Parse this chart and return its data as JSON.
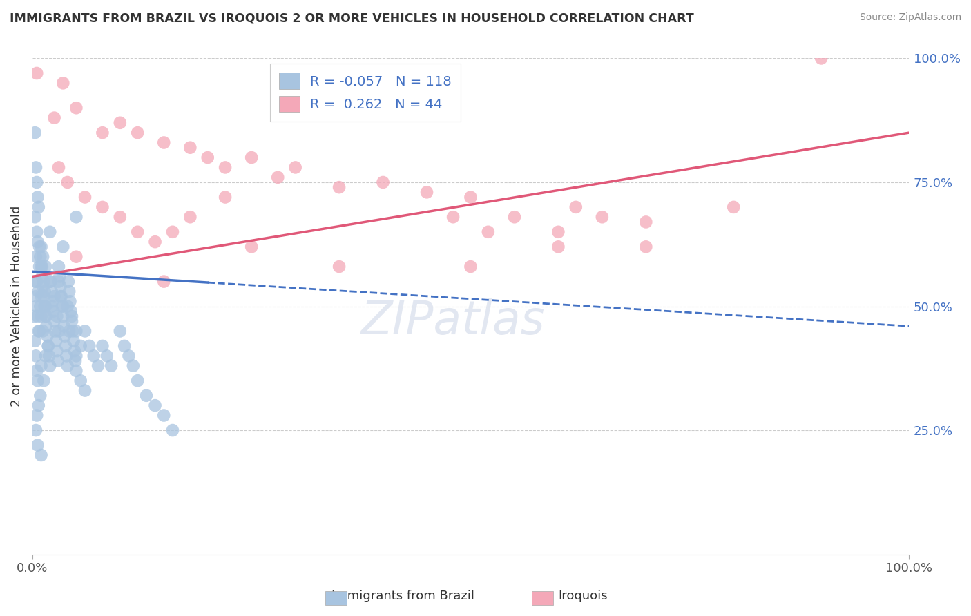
{
  "title": "IMMIGRANTS FROM BRAZIL VS IROQUOIS 2 OR MORE VEHICLES IN HOUSEHOLD CORRELATION CHART",
  "source": "Source: ZipAtlas.com",
  "ylabel": "2 or more Vehicles in Household",
  "xlim": [
    0,
    100
  ],
  "ylim": [
    0,
    100
  ],
  "blue_R": -0.057,
  "blue_N": 118,
  "pink_R": 0.262,
  "pink_N": 44,
  "blue_color": "#a8c4e0",
  "pink_color": "#f4a8b8",
  "blue_line_color": "#4472c4",
  "pink_line_color": "#e05878",
  "legend_label_blue": "Immigrants from Brazil",
  "legend_label_pink": "Iroquois",
  "watermark": "ZIPatlas",
  "blue_line": [
    [
      0,
      57
    ],
    [
      100,
      46
    ]
  ],
  "pink_line": [
    [
      0,
      56
    ],
    [
      100,
      85
    ]
  ],
  "blue_solid_end": 20,
  "blue_scatter": [
    [
      0.3,
      85
    ],
    [
      0.4,
      78
    ],
    [
      0.5,
      75
    ],
    [
      0.6,
      72
    ],
    [
      0.7,
      70
    ],
    [
      0.3,
      68
    ],
    [
      0.5,
      65
    ],
    [
      0.6,
      63
    ],
    [
      0.4,
      60
    ],
    [
      0.8,
      58
    ],
    [
      0.5,
      55
    ],
    [
      0.7,
      53
    ],
    [
      0.9,
      50
    ],
    [
      1.0,
      48
    ],
    [
      0.8,
      45
    ],
    [
      1.0,
      62
    ],
    [
      1.2,
      60
    ],
    [
      1.1,
      58
    ],
    [
      1.3,
      55
    ],
    [
      1.4,
      53
    ],
    [
      1.5,
      50
    ],
    [
      1.6,
      48
    ],
    [
      1.2,
      45
    ],
    [
      1.8,
      42
    ],
    [
      1.5,
      40
    ],
    [
      1.0,
      38
    ],
    [
      1.3,
      35
    ],
    [
      0.9,
      32
    ],
    [
      0.7,
      30
    ],
    [
      0.5,
      28
    ],
    [
      0.4,
      25
    ],
    [
      0.6,
      22
    ],
    [
      1.0,
      20
    ],
    [
      2.0,
      55
    ],
    [
      2.5,
      52
    ],
    [
      2.2,
      50
    ],
    [
      2.8,
      48
    ],
    [
      3.0,
      55
    ],
    [
      3.2,
      52
    ],
    [
      3.5,
      50
    ],
    [
      3.0,
      45
    ],
    [
      4.0,
      50
    ],
    [
      4.5,
      48
    ],
    [
      4.2,
      45
    ],
    [
      5.0,
      45
    ],
    [
      5.5,
      42
    ],
    [
      5.0,
      40
    ],
    [
      6.0,
      45
    ],
    [
      6.5,
      42
    ],
    [
      7.0,
      40
    ],
    [
      7.5,
      38
    ],
    [
      8.0,
      42
    ],
    [
      8.5,
      40
    ],
    [
      9.0,
      38
    ],
    [
      10.0,
      45
    ],
    [
      10.5,
      42
    ],
    [
      11.0,
      40
    ],
    [
      11.5,
      38
    ],
    [
      12.0,
      35
    ],
    [
      13.0,
      32
    ],
    [
      14.0,
      30
    ],
    [
      15.0,
      28
    ],
    [
      16.0,
      25
    ],
    [
      0.3,
      55
    ],
    [
      0.4,
      52
    ],
    [
      0.5,
      50
    ],
    [
      0.6,
      48
    ],
    [
      0.7,
      45
    ],
    [
      0.8,
      62
    ],
    [
      0.9,
      60
    ],
    [
      1.0,
      58
    ],
    [
      1.1,
      56
    ],
    [
      1.2,
      54
    ],
    [
      1.3,
      52
    ],
    [
      1.4,
      50
    ],
    [
      1.5,
      48
    ],
    [
      1.6,
      46
    ],
    [
      1.7,
      44
    ],
    [
      1.8,
      42
    ],
    [
      1.9,
      40
    ],
    [
      2.0,
      38
    ],
    [
      2.1,
      55
    ],
    [
      2.2,
      53
    ],
    [
      2.3,
      51
    ],
    [
      2.4,
      49
    ],
    [
      2.5,
      47
    ],
    [
      2.6,
      45
    ],
    [
      2.7,
      43
    ],
    [
      2.8,
      41
    ],
    [
      2.9,
      39
    ],
    [
      3.0,
      58
    ],
    [
      3.1,
      56
    ],
    [
      3.2,
      54
    ],
    [
      3.3,
      52
    ],
    [
      3.4,
      50
    ],
    [
      3.5,
      48
    ],
    [
      3.6,
      46
    ],
    [
      3.7,
      44
    ],
    [
      3.8,
      42
    ],
    [
      3.9,
      40
    ],
    [
      4.0,
      38
    ],
    [
      4.1,
      55
    ],
    [
      4.2,
      53
    ],
    [
      4.3,
      51
    ],
    [
      4.4,
      49
    ],
    [
      4.5,
      47
    ],
    [
      4.6,
      45
    ],
    [
      4.7,
      43
    ],
    [
      4.8,
      41
    ],
    [
      4.9,
      39
    ],
    [
      5.0,
      37
    ],
    [
      5.5,
      35
    ],
    [
      6.0,
      33
    ],
    [
      0.2,
      48
    ],
    [
      0.3,
      43
    ],
    [
      0.4,
      40
    ],
    [
      0.5,
      37
    ],
    [
      0.6,
      35
    ],
    [
      1.0,
      52
    ],
    [
      1.5,
      58
    ],
    [
      2.0,
      65
    ],
    [
      3.5,
      62
    ],
    [
      5.0,
      68
    ]
  ],
  "pink_scatter": [
    [
      0.5,
      97
    ],
    [
      3.5,
      95
    ],
    [
      2.5,
      88
    ],
    [
      5.0,
      90
    ],
    [
      8.0,
      85
    ],
    [
      10.0,
      87
    ],
    [
      12.0,
      85
    ],
    [
      15.0,
      83
    ],
    [
      18.0,
      82
    ],
    [
      20.0,
      80
    ],
    [
      22.0,
      78
    ],
    [
      25.0,
      80
    ],
    [
      28.0,
      76
    ],
    [
      30.0,
      78
    ],
    [
      35.0,
      74
    ],
    [
      40.0,
      75
    ],
    [
      45.0,
      73
    ],
    [
      48.0,
      68
    ],
    [
      50.0,
      72
    ],
    [
      52.0,
      65
    ],
    [
      55.0,
      68
    ],
    [
      60.0,
      65
    ],
    [
      62.0,
      70
    ],
    [
      65.0,
      68
    ],
    [
      70.0,
      62
    ],
    [
      4.0,
      75
    ],
    [
      6.0,
      72
    ],
    [
      8.0,
      70
    ],
    [
      10.0,
      68
    ],
    [
      12.0,
      65
    ],
    [
      14.0,
      63
    ],
    [
      16.0,
      65
    ],
    [
      18.0,
      68
    ],
    [
      3.0,
      78
    ],
    [
      5.0,
      60
    ],
    [
      15.0,
      55
    ],
    [
      25.0,
      62
    ],
    [
      35.0,
      58
    ],
    [
      50.0,
      58
    ],
    [
      60.0,
      62
    ],
    [
      70.0,
      67
    ],
    [
      80.0,
      70
    ],
    [
      90.0,
      100
    ],
    [
      22.0,
      72
    ]
  ]
}
